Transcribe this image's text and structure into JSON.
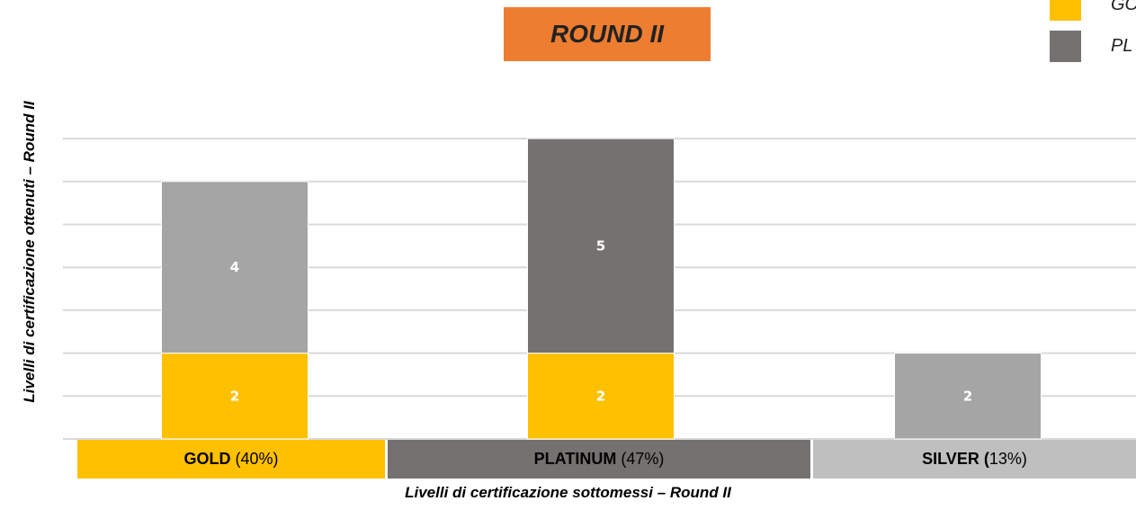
{
  "chart_data": {
    "type": "bar",
    "stacked": true,
    "title": "ROUND II",
    "xlabel": "Livelli di certificazione sottomessi – Round II",
    "ylabel": "Livelli di certificazione ottenuti – Round II",
    "categories": [
      "GOLD",
      "PLATINUM",
      "SILVER"
    ],
    "category_percent": [
      "(40%)",
      "(47%)",
      "13%)"
    ],
    "category_name_display": [
      "GOLD",
      "PLATINUM",
      "SILVER ("
    ],
    "series": [
      {
        "color": "#ffc000",
        "values": [
          2,
          2,
          0
        ]
      },
      {
        "color": "#a5a5a5",
        "values": [
          4,
          0,
          2
        ]
      },
      {
        "color": "#767171",
        "values": [
          0,
          5,
          0
        ]
      }
    ],
    "ylim": [
      0,
      7
    ],
    "grid": true,
    "legend": {
      "position": "top-right",
      "entries": [
        {
          "label": "GO",
          "color": "#ffc000"
        },
        {
          "label": "PL",
          "color": "#767171"
        }
      ]
    },
    "category_strip_colors": [
      "#ffc000",
      "#767171",
      "#bfbfbf"
    ]
  }
}
